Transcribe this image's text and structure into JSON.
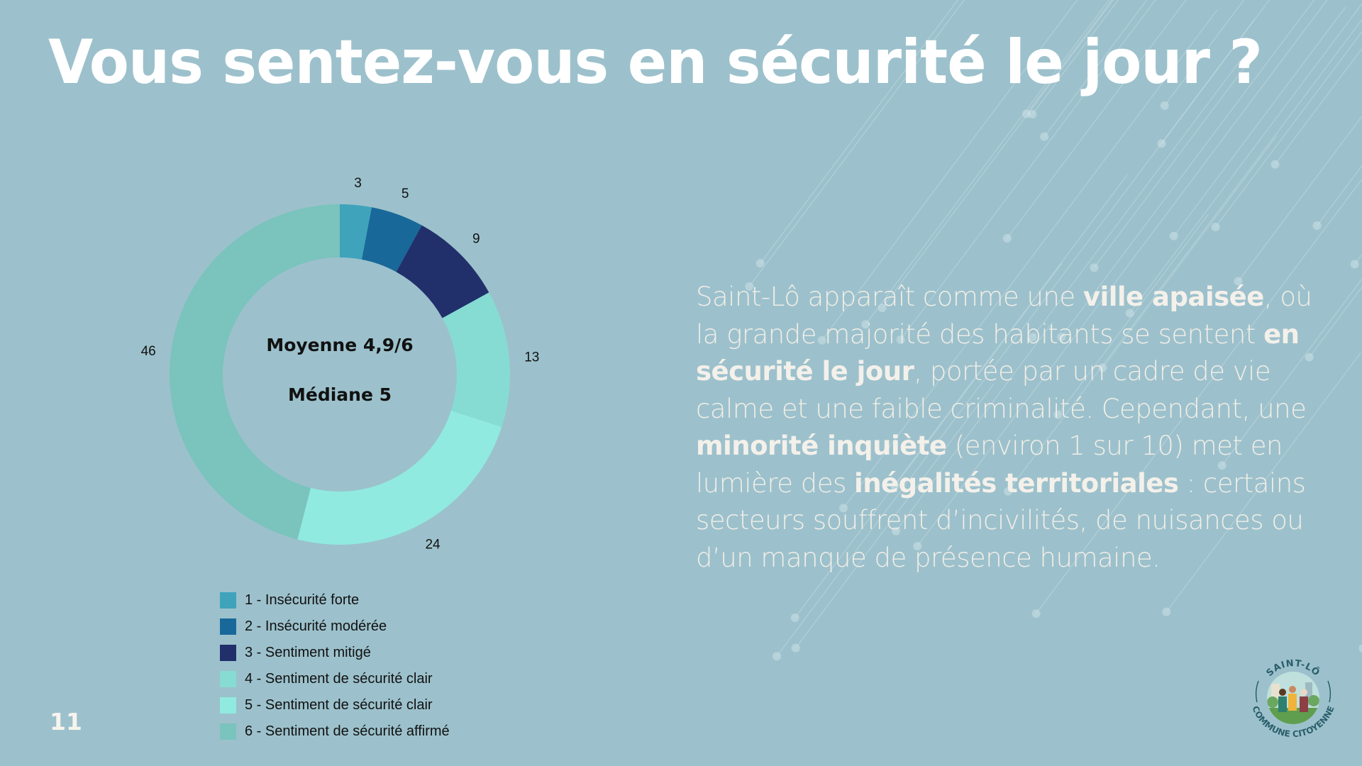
{
  "slide": {
    "title": "Vous sentez-vous en sécurité le jour ?",
    "page_number": "11",
    "background_color": "#9cc1cc"
  },
  "center": {
    "mean_label": "Moyenne 4,9/6",
    "median_label": "Médiane 5"
  },
  "paragraph": {
    "runs": [
      {
        "text": "Saint-Lô apparaît comme une ",
        "bold": false
      },
      {
        "text": "ville apaisée",
        "bold": true
      },
      {
        "text": ", où la grande majorité des habitants se sentent ",
        "bold": false
      },
      {
        "text": "en sécurité le jour",
        "bold": true
      },
      {
        "text": ", portée par un cadre de vie calme et une faible criminalité. Cependant, une ",
        "bold": false
      },
      {
        "text": "minorité inquiète",
        "bold": true
      },
      {
        "text": " (environ 1 sur 10) met en lumière des ",
        "bold": false
      },
      {
        "text": "inégalités territoriales",
        "bold": true
      },
      {
        "text": " : certains secteurs souffrent d’incivilités, de nuisances ou d’un manque de présence humaine.",
        "bold": false
      }
    ]
  },
  "logo": {
    "top_text": "SAINT-LÔ",
    "bottom_text": "COMMUNE CITOYENNE"
  },
  "chart_data": {
    "type": "pie",
    "subtype": "donut",
    "title": "Vous sentez-vous en sécurité le jour ?",
    "categories": [
      "1 - Insécurité forte",
      "2 - Insécurité modérée",
      "3 - Sentiment mitigé",
      "4 - Sentiment de sécurité clair",
      "5 - Sentiment de sécurité clair",
      "6 - Sentiment de sécurité affirmé"
    ],
    "values": [
      3,
      5,
      9,
      13,
      24,
      46
    ],
    "data_labels": [
      "3",
      "5",
      "9",
      "13",
      "24",
      "46"
    ],
    "colors": [
      "#3fa3bc",
      "#18699a",
      "#21306b",
      "#86dcd3",
      "#90eae0",
      "#7bc3bd"
    ],
    "start_angle": "12 o'clock",
    "direction": "clockwise",
    "center_text": [
      "Moyenne 4,9/6",
      "Médiane 5"
    ],
    "legend_position": "bottom-left"
  }
}
